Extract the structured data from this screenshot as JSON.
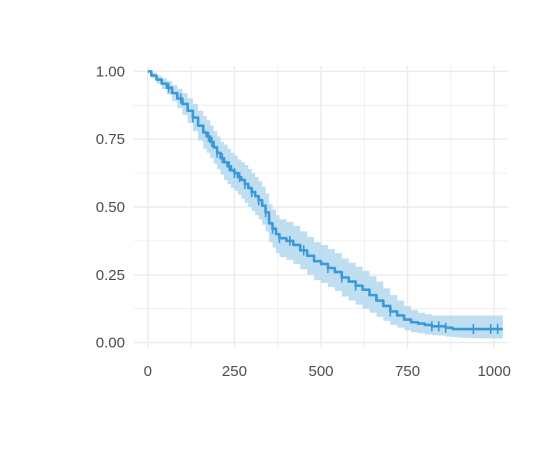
{
  "chart_data": {
    "type": "line",
    "title": "",
    "xlabel": "",
    "ylabel": "",
    "xlim": [
      -40,
      1040
    ],
    "ylim": [
      -0.02,
      1.02
    ],
    "x_ticks": [
      0,
      250,
      500,
      750,
      1000
    ],
    "x_tick_labels": [
      "0",
      "250",
      "500",
      "750",
      "1000"
    ],
    "y_ticks": [
      0,
      0.25,
      0.5,
      0.75,
      1.0
    ],
    "y_tick_labels": [
      "0.00",
      "0.25",
      "0.50",
      "0.75",
      "1.00"
    ],
    "grid": true,
    "legend": "none",
    "colors": {
      "line": "#3a9ad9",
      "band": "#b5d8f0",
      "grid": "#ebebeb"
    },
    "series": [
      {
        "x": [
          0,
          10,
          25,
          40,
          55,
          70,
          85,
          100,
          115,
          130,
          145,
          160,
          170,
          180,
          190,
          200,
          210,
          220,
          230,
          240,
          250,
          260,
          270,
          280,
          290,
          300,
          310,
          320,
          330,
          340,
          350,
          360,
          370,
          380,
          400,
          420,
          440,
          460,
          480,
          500,
          520,
          540,
          560,
          580,
          600,
          620,
          640,
          660,
          680,
          700,
          720,
          740,
          760,
          780,
          800,
          820,
          840,
          860,
          880,
          900,
          920,
          940,
          960,
          980,
          1000,
          1025
        ],
        "y": [
          1.0,
          0.985,
          0.97,
          0.955,
          0.94,
          0.92,
          0.9,
          0.88,
          0.855,
          0.83,
          0.8,
          0.775,
          0.76,
          0.74,
          0.72,
          0.7,
          0.68,
          0.665,
          0.65,
          0.635,
          0.625,
          0.61,
          0.6,
          0.585,
          0.57,
          0.555,
          0.54,
          0.525,
          0.505,
          0.48,
          0.44,
          0.42,
          0.4,
          0.385,
          0.375,
          0.36,
          0.34,
          0.32,
          0.3,
          0.29,
          0.275,
          0.26,
          0.24,
          0.225,
          0.21,
          0.195,
          0.175,
          0.155,
          0.135,
          0.115,
          0.1,
          0.085,
          0.075,
          0.07,
          0.065,
          0.06,
          0.06,
          0.055,
          0.05,
          0.05,
          0.05,
          0.05,
          0.05,
          0.05,
          0.05,
          0.05
        ],
        "lower": [
          1.0,
          0.975,
          0.955,
          0.935,
          0.915,
          0.89,
          0.865,
          0.84,
          0.81,
          0.78,
          0.745,
          0.715,
          0.7,
          0.68,
          0.66,
          0.64,
          0.62,
          0.6,
          0.585,
          0.57,
          0.56,
          0.545,
          0.53,
          0.515,
          0.5,
          0.485,
          0.47,
          0.455,
          0.435,
          0.41,
          0.37,
          0.35,
          0.33,
          0.315,
          0.305,
          0.29,
          0.27,
          0.25,
          0.23,
          0.22,
          0.205,
          0.19,
          0.17,
          0.155,
          0.14,
          0.125,
          0.11,
          0.095,
          0.08,
          0.065,
          0.055,
          0.045,
          0.038,
          0.034,
          0.03,
          0.027,
          0.026,
          0.022,
          0.02,
          0.018,
          0.017,
          0.016,
          0.015,
          0.015,
          0.015,
          0.015
        ],
        "upper": [
          1.0,
          0.995,
          0.985,
          0.975,
          0.965,
          0.95,
          0.935,
          0.92,
          0.9,
          0.88,
          0.855,
          0.835,
          0.82,
          0.8,
          0.78,
          0.76,
          0.74,
          0.73,
          0.715,
          0.7,
          0.69,
          0.675,
          0.665,
          0.655,
          0.64,
          0.625,
          0.61,
          0.595,
          0.575,
          0.55,
          0.51,
          0.49,
          0.47,
          0.455,
          0.445,
          0.43,
          0.41,
          0.39,
          0.37,
          0.36,
          0.345,
          0.33,
          0.31,
          0.295,
          0.28,
          0.265,
          0.245,
          0.225,
          0.2,
          0.175,
          0.155,
          0.135,
          0.12,
          0.11,
          0.105,
          0.1,
          0.1,
          0.1,
          0.1,
          0.1,
          0.1,
          0.1,
          0.1,
          0.1,
          0.1,
          0.1
        ]
      }
    ],
    "censor_x": [
      60,
      95,
      130,
      175,
      185,
      200,
      215,
      235,
      250,
      265,
      280,
      300,
      320,
      340,
      360,
      380,
      410,
      450,
      520,
      560,
      600,
      700,
      820,
      840,
      860,
      940,
      990,
      1010
    ]
  }
}
